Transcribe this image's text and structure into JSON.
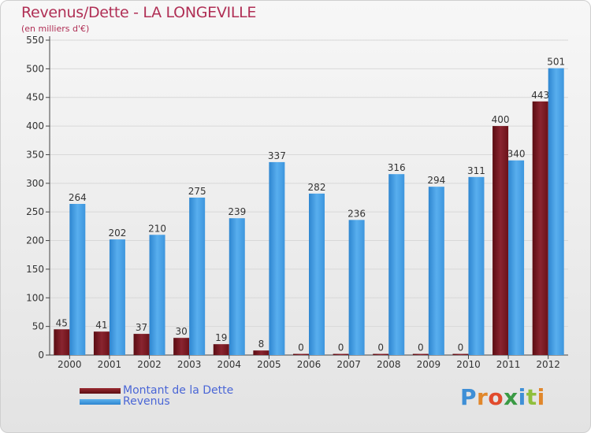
{
  "title": "Revenus/Dette - LA LONGEVILLE",
  "subtitle": "(en milliers d'€)",
  "brand": {
    "logo_text": "Proxiti",
    "letter_colors": [
      "#3e8fd6",
      "#e1872b",
      "#e14b2d",
      "#3a9a44",
      "#3e8fd6",
      "#8fbf3c",
      "#e1872b"
    ]
  },
  "colors": {
    "dette": "#7a1a22",
    "revenus": "#3d9be2",
    "axis": "#444444",
    "grid": "#d8d8d8"
  },
  "chart_data": {
    "type": "bar",
    "categories": [
      "2000",
      "2001",
      "2002",
      "2003",
      "2004",
      "2005",
      "2006",
      "2007",
      "2008",
      "2009",
      "2010",
      "2011",
      "2012"
    ],
    "series": [
      {
        "name": "Montant de la Dette",
        "values": [
          45,
          41,
          37,
          30,
          19,
          8,
          0,
          0,
          0,
          0,
          0,
          400,
          443
        ]
      },
      {
        "name": "Revenus",
        "values": [
          264,
          202,
          210,
          275,
          239,
          337,
          282,
          236,
          316,
          294,
          311,
          340,
          501
        ]
      }
    ],
    "ylim": [
      0,
      550
    ],
    "yticks": [
      0,
      50,
      100,
      150,
      200,
      250,
      300,
      350,
      400,
      450,
      500,
      550
    ],
    "grid": true,
    "legend_position": "bottom-left"
  }
}
